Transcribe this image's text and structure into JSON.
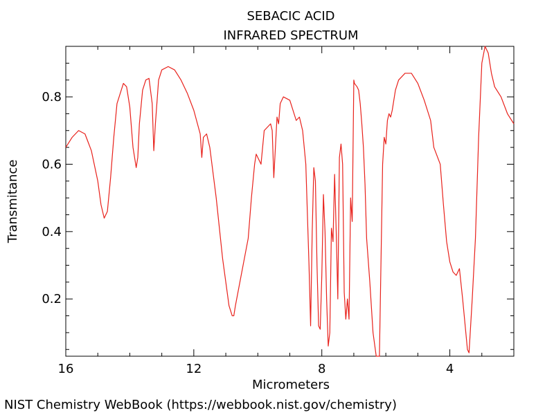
{
  "chart_data": {
    "type": "line",
    "title": "SEBACIC ACID",
    "subtitle": "INFRARED SPECTRUM",
    "xlabel": "Micrometers",
    "ylabel": "Transmitance",
    "xlim": [
      16,
      2
    ],
    "ylim": [
      0.03,
      0.95
    ],
    "xticks": [
      16,
      12,
      8,
      4
    ],
    "yticks": [
      0.2,
      0.4,
      0.6,
      0.8
    ],
    "grid": false,
    "line_color": "#e8201a",
    "series": [
      {
        "x": [
          16.0,
          15.8,
          15.6,
          15.4,
          15.2,
          15.0,
          14.9,
          14.8,
          14.7,
          14.6,
          14.5,
          14.4,
          14.2,
          14.1,
          14.0,
          13.9,
          13.8,
          13.75,
          13.7,
          13.6,
          13.5,
          13.4,
          13.3,
          13.25,
          13.2,
          13.1,
          13.0,
          12.8,
          12.6,
          12.4,
          12.2,
          12.0,
          11.8,
          11.75,
          11.7,
          11.6,
          11.5,
          11.3,
          11.1,
          10.9,
          10.8,
          10.75,
          10.7,
          10.5,
          10.3,
          10.2,
          10.1,
          10.05,
          10.0,
          9.9,
          9.8,
          9.6,
          9.55,
          9.5,
          9.4,
          9.35,
          9.3,
          9.2,
          9.0,
          8.8,
          8.7,
          8.6,
          8.5,
          8.4,
          8.35,
          8.3,
          8.25,
          8.2,
          8.15,
          8.1,
          8.05,
          8.0,
          7.95,
          7.9,
          7.85,
          7.8,
          7.75,
          7.7,
          7.65,
          7.6,
          7.55,
          7.5,
          7.45,
          7.4,
          7.35,
          7.3,
          7.25,
          7.2,
          7.15,
          7.1,
          7.05,
          7.0,
          6.98,
          6.9,
          6.85,
          6.8,
          6.75,
          6.7,
          6.65,
          6.6,
          6.5,
          6.4,
          6.3,
          6.2,
          6.1,
          6.05,
          6.0,
          5.95,
          5.9,
          5.85,
          5.8,
          5.7,
          5.6,
          5.4,
          5.2,
          5.0,
          4.8,
          4.6,
          4.5,
          4.3,
          4.2,
          4.1,
          4.0,
          3.9,
          3.8,
          3.7,
          3.6,
          3.5,
          3.45,
          3.4,
          3.35,
          3.3,
          3.2,
          3.1,
          3.0,
          2.9,
          2.8,
          2.7,
          2.6,
          2.4,
          2.2,
          2.0
        ],
        "y": [
          0.65,
          0.68,
          0.7,
          0.69,
          0.64,
          0.55,
          0.48,
          0.44,
          0.46,
          0.56,
          0.68,
          0.78,
          0.84,
          0.83,
          0.77,
          0.65,
          0.59,
          0.62,
          0.72,
          0.82,
          0.85,
          0.855,
          0.78,
          0.64,
          0.72,
          0.85,
          0.88,
          0.89,
          0.88,
          0.85,
          0.81,
          0.76,
          0.69,
          0.62,
          0.68,
          0.69,
          0.65,
          0.5,
          0.32,
          0.18,
          0.15,
          0.15,
          0.18,
          0.28,
          0.38,
          0.5,
          0.6,
          0.63,
          0.62,
          0.6,
          0.7,
          0.72,
          0.7,
          0.56,
          0.74,
          0.72,
          0.78,
          0.8,
          0.79,
          0.73,
          0.74,
          0.7,
          0.6,
          0.3,
          0.12,
          0.4,
          0.59,
          0.55,
          0.3,
          0.12,
          0.11,
          0.27,
          0.51,
          0.4,
          0.2,
          0.06,
          0.1,
          0.41,
          0.37,
          0.57,
          0.4,
          0.2,
          0.62,
          0.66,
          0.6,
          0.22,
          0.14,
          0.2,
          0.14,
          0.5,
          0.43,
          0.85,
          0.84,
          0.83,
          0.82,
          0.78,
          0.72,
          0.65,
          0.54,
          0.38,
          0.25,
          0.1,
          0.03,
          0.03,
          0.6,
          0.68,
          0.66,
          0.73,
          0.75,
          0.74,
          0.76,
          0.82,
          0.85,
          0.87,
          0.87,
          0.84,
          0.79,
          0.73,
          0.65,
          0.6,
          0.48,
          0.37,
          0.31,
          0.28,
          0.27,
          0.29,
          0.2,
          0.1,
          0.05,
          0.04,
          0.12,
          0.2,
          0.38,
          0.68,
          0.9,
          0.95,
          0.93,
          0.87,
          0.83,
          0.8,
          0.75,
          0.72
        ]
      }
    ]
  },
  "footer": {
    "source": "NIST Chemistry WebBook (https://webbook.nist.gov/chemistry)"
  }
}
